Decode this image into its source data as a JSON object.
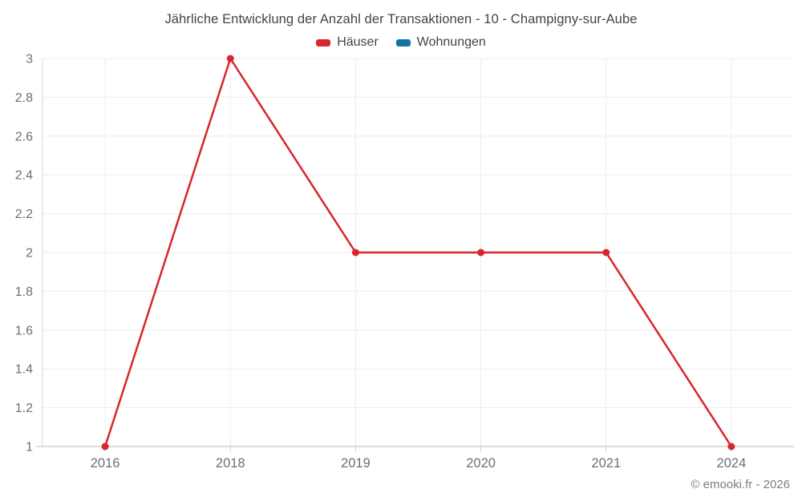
{
  "title": "Jährliche Entwicklung der Anzahl der Transaktionen - 10 - Champigny-sur-Aube",
  "legend": {
    "items": [
      {
        "label": "Häuser",
        "color": "#d8262c"
      },
      {
        "label": "Wohnungen",
        "color": "#1572a5"
      }
    ]
  },
  "copyright": "© emooki.fr - 2026",
  "colors": {
    "title_text": "#3f454c",
    "axis_label_text": "#6f6f6f",
    "gridline": "#ededed",
    "x_axis_line": "#b9b9b9",
    "y_axis_line": "#d9d9d9",
    "tick": "#cccccc",
    "background": "#ffffff"
  },
  "chart_data": {
    "type": "line",
    "title": "Jährliche Entwicklung der Anzahl der Transaktionen - 10 - Champigny-sur-Aube",
    "categories": [
      "2016",
      "2018",
      "2019",
      "2020",
      "2021",
      "2024"
    ],
    "series": [
      {
        "name": "Häuser",
        "color": "#d8262c",
        "values": [
          1,
          3,
          2,
          2,
          2,
          1
        ]
      },
      {
        "name": "Wohnungen",
        "color": "#1572a5",
        "values": []
      }
    ],
    "xlabel": "",
    "ylabel": "",
    "ylim": [
      1,
      3
    ],
    "ytick_step": 0.2,
    "grid": true,
    "legend_position": "top"
  }
}
